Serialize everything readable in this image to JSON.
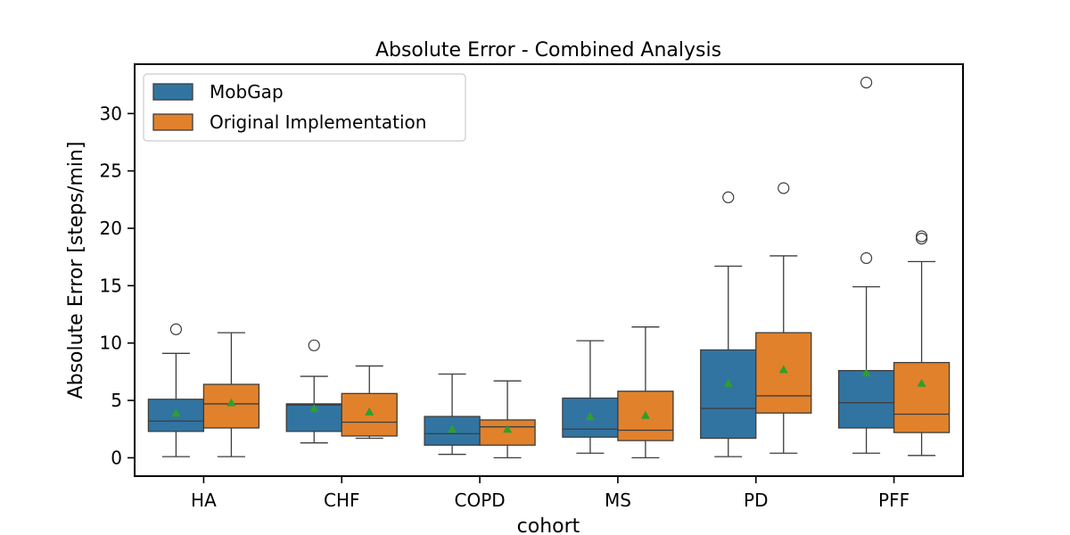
{
  "chart_data": {
    "type": "box",
    "title": "Absolute Error - Combined Analysis",
    "xlabel": "cohort",
    "ylabel": "Absolute Error [steps/min]",
    "ylim": [
      -1.6,
      34.3
    ],
    "yticks": [
      0,
      5,
      10,
      15,
      20,
      25,
      30
    ],
    "categories": [
      "HA",
      "CHF",
      "COPD",
      "MS",
      "PD",
      "PFF"
    ],
    "legend_position": "top-left",
    "series": [
      {
        "name": "MobGap",
        "color": "#3274a1",
        "boxes": [
          {
            "category": "HA",
            "whislo": 0.1,
            "q1": 2.3,
            "med": 3.2,
            "q3": 5.1,
            "whishi": 9.1,
            "mean": 3.9,
            "fliers": [
              11.2
            ]
          },
          {
            "category": "CHF",
            "whislo": 1.3,
            "q1": 2.3,
            "med": 4.6,
            "q3": 4.7,
            "whishi": 7.1,
            "mean": 4.3,
            "fliers": [
              9.8
            ]
          },
          {
            "category": "COPD",
            "whislo": 0.3,
            "q1": 1.1,
            "med": 2.1,
            "q3": 3.6,
            "whishi": 7.3,
            "mean": 2.5,
            "fliers": []
          },
          {
            "category": "MS",
            "whislo": 0.4,
            "q1": 1.8,
            "med": 2.5,
            "q3": 5.2,
            "whishi": 10.2,
            "mean": 3.6,
            "fliers": []
          },
          {
            "category": "PD",
            "whislo": 0.1,
            "q1": 1.7,
            "med": 4.3,
            "q3": 9.4,
            "whishi": 16.7,
            "mean": 6.5,
            "fliers": [
              22.7
            ]
          },
          {
            "category": "PFF",
            "whislo": 0.4,
            "q1": 2.6,
            "med": 4.8,
            "q3": 7.6,
            "whishi": 14.9,
            "mean": 7.4,
            "fliers": [
              17.4,
              32.7
            ]
          }
        ]
      },
      {
        "name": "Original Implementation",
        "color": "#e1812c",
        "boxes": [
          {
            "category": "HA",
            "whislo": 0.1,
            "q1": 2.6,
            "med": 4.7,
            "q3": 6.4,
            "whishi": 10.9,
            "mean": 4.8,
            "fliers": []
          },
          {
            "category": "CHF",
            "whislo": 1.7,
            "q1": 1.9,
            "med": 3.1,
            "q3": 5.6,
            "whishi": 8.0,
            "mean": 4.0,
            "fliers": []
          },
          {
            "category": "COPD",
            "whislo": 0.0,
            "q1": 1.1,
            "med": 2.7,
            "q3": 3.3,
            "whishi": 6.7,
            "mean": 2.5,
            "fliers": []
          },
          {
            "category": "MS",
            "whislo": 0.0,
            "q1": 1.5,
            "med": 2.4,
            "q3": 5.8,
            "whishi": 11.4,
            "mean": 3.7,
            "fliers": []
          },
          {
            "category": "PD",
            "whislo": 0.4,
            "q1": 3.9,
            "med": 5.4,
            "q3": 10.9,
            "whishi": 17.6,
            "mean": 7.7,
            "fliers": [
              23.5
            ]
          },
          {
            "category": "PFF",
            "whislo": 0.2,
            "q1": 2.2,
            "med": 3.8,
            "q3": 8.3,
            "whishi": 17.1,
            "mean": 6.5,
            "fliers": [
              19.1,
              19.3
            ]
          }
        ]
      }
    ],
    "mean_marker_color": "#2ca02c"
  }
}
